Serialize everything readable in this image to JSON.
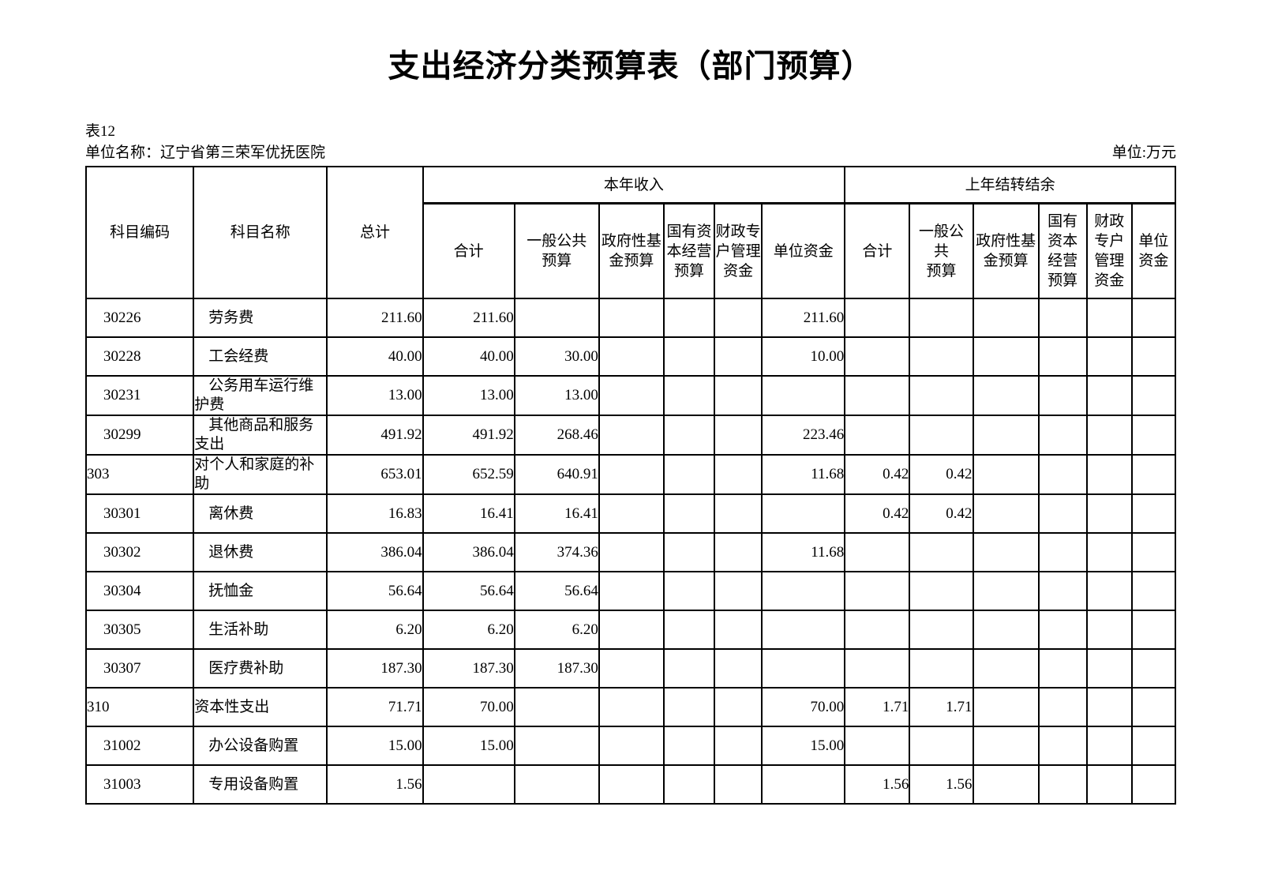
{
  "page": {
    "title": "支出经济分类预算表（部门预算）",
    "table_no": "表12",
    "unit_name": "单位名称：辽宁省第三荣军优抚医院",
    "unit_of_measure": "单位:万元",
    "text_color": "#000000",
    "background_color": "#ffffff"
  },
  "table": {
    "headers": {
      "code": "科目编码",
      "name": "科目名称",
      "total": "总计",
      "current_year_group": "本年收入",
      "carryover_group": "上年结转结余",
      "current_year_cols": [
        "合计",
        "一般公共\n预算",
        "政府性基\n金预算",
        "国有资\n本经营\n预算",
        "财政专\n户管理\n资金",
        "单位资金"
      ],
      "carryover_cols": [
        "合计",
        "一般公\n共\n预算",
        "政府性基\n金预算",
        "国有\n资本\n经营\n预算",
        "财政\n专户\n管理\n资金",
        "单位\n资金"
      ]
    },
    "rows": [
      {
        "code": "30226",
        "name": "劳务费",
        "level": "child",
        "total": "211.60",
        "cy": [
          "211.60",
          "",
          "",
          "",
          "",
          "211.60"
        ],
        "co": [
          "",
          "",
          "",
          "",
          "",
          ""
        ]
      },
      {
        "code": "30228",
        "name": "工会经费",
        "level": "child",
        "total": "40.00",
        "cy": [
          "40.00",
          "30.00",
          "",
          "",
          "",
          "10.00"
        ],
        "co": [
          "",
          "",
          "",
          "",
          "",
          ""
        ]
      },
      {
        "code": "30231",
        "name": "公务用车运行维护费",
        "level": "child",
        "total": "13.00",
        "cy": [
          "13.00",
          "13.00",
          "",
          "",
          "",
          ""
        ],
        "co": [
          "",
          "",
          "",
          "",
          "",
          ""
        ]
      },
      {
        "code": "30299",
        "name": "其他商品和服务支出",
        "level": "child",
        "total": "491.92",
        "cy": [
          "491.92",
          "268.46",
          "",
          "",
          "",
          "223.46"
        ],
        "co": [
          "",
          "",
          "",
          "",
          "",
          ""
        ]
      },
      {
        "code": "303",
        "name": "对个人和家庭的补助",
        "level": "parent",
        "total": "653.01",
        "cy": [
          "652.59",
          "640.91",
          "",
          "",
          "",
          "11.68"
        ],
        "co": [
          "0.42",
          "0.42",
          "",
          "",
          "",
          ""
        ]
      },
      {
        "code": "30301",
        "name": "离休费",
        "level": "child",
        "total": "16.83",
        "cy": [
          "16.41",
          "16.41",
          "",
          "",
          "",
          ""
        ],
        "co": [
          "0.42",
          "0.42",
          "",
          "",
          "",
          ""
        ]
      },
      {
        "code": "30302",
        "name": "退休费",
        "level": "child",
        "total": "386.04",
        "cy": [
          "386.04",
          "374.36",
          "",
          "",
          "",
          "11.68"
        ],
        "co": [
          "",
          "",
          "",
          "",
          "",
          ""
        ]
      },
      {
        "code": "30304",
        "name": "抚恤金",
        "level": "child",
        "total": "56.64",
        "cy": [
          "56.64",
          "56.64",
          "",
          "",
          "",
          ""
        ],
        "co": [
          "",
          "",
          "",
          "",
          "",
          ""
        ]
      },
      {
        "code": "30305",
        "name": "生活补助",
        "level": "child",
        "total": "6.20",
        "cy": [
          "6.20",
          "6.20",
          "",
          "",
          "",
          ""
        ],
        "co": [
          "",
          "",
          "",
          "",
          "",
          ""
        ]
      },
      {
        "code": "30307",
        "name": "医疗费补助",
        "level": "child",
        "total": "187.30",
        "cy": [
          "187.30",
          "187.30",
          "",
          "",
          "",
          ""
        ],
        "co": [
          "",
          "",
          "",
          "",
          "",
          ""
        ]
      },
      {
        "code": "310",
        "name": "资本性支出",
        "level": "parent",
        "total": "71.71",
        "cy": [
          "70.00",
          "",
          "",
          "",
          "",
          "70.00"
        ],
        "co": [
          "1.71",
          "1.71",
          "",
          "",
          "",
          ""
        ]
      },
      {
        "code": "31002",
        "name": "办公设备购置",
        "level": "child",
        "total": "15.00",
        "cy": [
          "15.00",
          "",
          "",
          "",
          "",
          "15.00"
        ],
        "co": [
          "",
          "",
          "",
          "",
          "",
          ""
        ]
      },
      {
        "code": "31003",
        "name": "专用设备购置",
        "level": "child",
        "total": "1.56",
        "cy": [
          "",
          "",
          "",
          "",
          "",
          ""
        ],
        "co": [
          "1.56",
          "1.56",
          "",
          "",
          "",
          ""
        ]
      }
    ]
  }
}
